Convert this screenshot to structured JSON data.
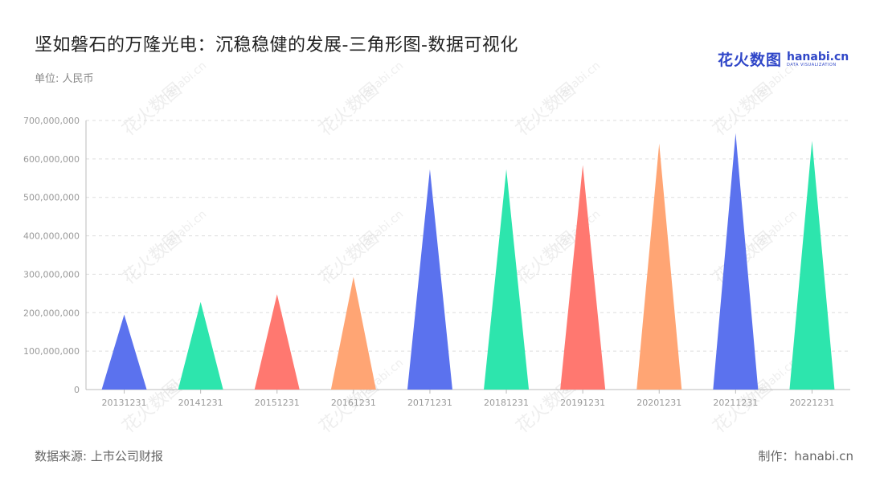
{
  "header": {
    "title": "坚如磐石的万隆光电：沉稳稳健的发展-三角形图-数据可视化",
    "unit": "单位: 人民币"
  },
  "logo": {
    "cn": "花火数图",
    "en": "hanabi.cn",
    "en_sub": "DATA VISUALIZATION"
  },
  "footer": {
    "source": "数据来源: 上市公司财报",
    "maker": "制作：hanabi.cn"
  },
  "watermark": {
    "text": "花火数图",
    "text_en": "hanabi.cn"
  },
  "colors": {
    "palette": [
      "#5b72ee",
      "#2de5ad",
      "#ff7870",
      "#ffa574"
    ],
    "grid": "#dddddd",
    "axis": "#bbbbbb"
  },
  "chart_data": {
    "type": "bar",
    "bar_shape": "triangle",
    "categories": [
      "20131231",
      "20141231",
      "20151231",
      "20161231",
      "20171231",
      "20181231",
      "20191231",
      "20201231",
      "20211231",
      "20221231"
    ],
    "values": [
      195000000,
      228000000,
      248000000,
      293000000,
      573000000,
      573000000,
      584000000,
      640000000,
      667000000,
      647000000
    ],
    "ylim": [
      0,
      700000000
    ],
    "yticks": [
      "0",
      "100,000,000",
      "200,000,000",
      "300,000,000",
      "400,000,000",
      "500,000,000",
      "600,000,000",
      "700,000,000"
    ],
    "grid": true
  }
}
